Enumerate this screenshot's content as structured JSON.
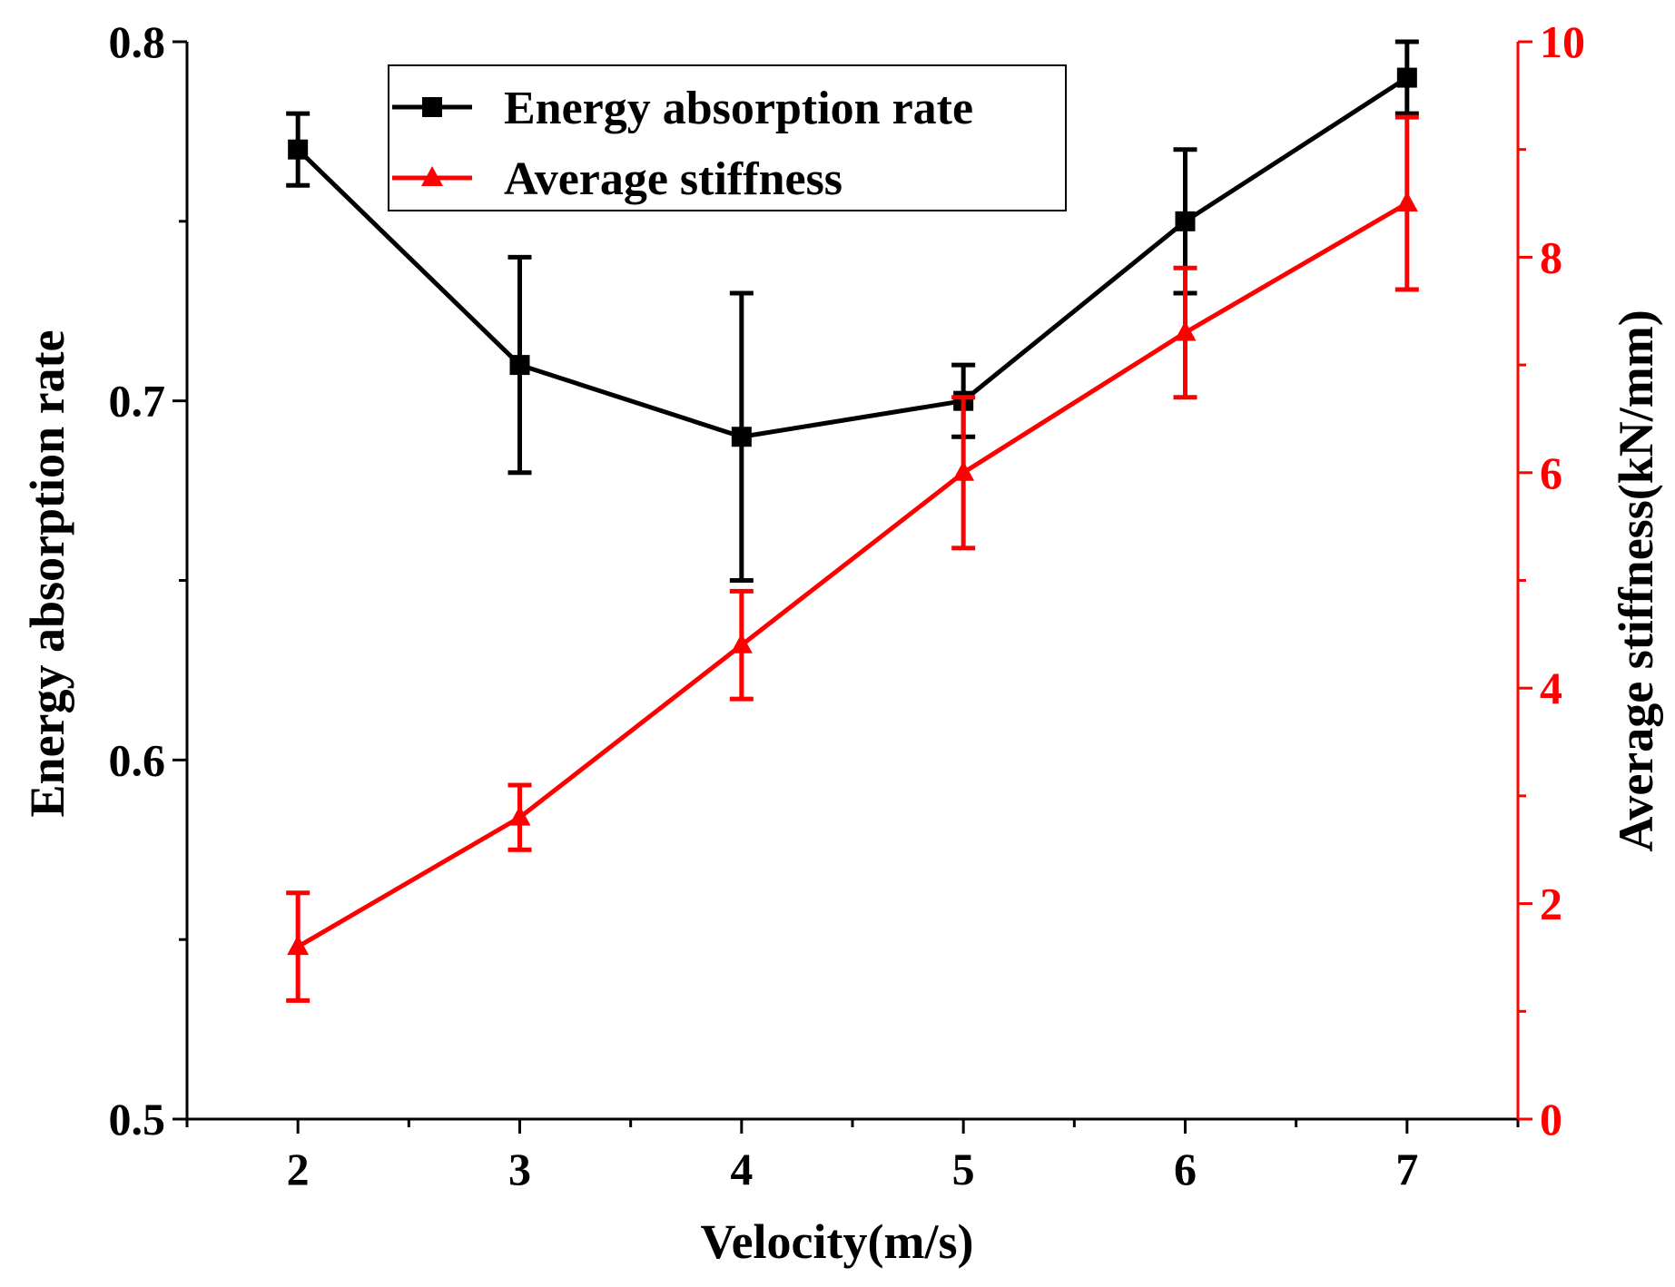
{
  "chart_data": {
    "type": "line",
    "title": "",
    "xlabel": "Velocity(m/s)",
    "ylabel_left": "Energy absorption rate",
    "ylabel_right": "Average stiffness(kN/mm)",
    "xlim": [
      1.5,
      7.5
    ],
    "ylim_left": [
      0.5,
      0.8
    ],
    "ylim_right": [
      0,
      10
    ],
    "x_ticks": [
      2,
      3,
      4,
      5,
      6,
      7
    ],
    "x_tick_labels": [
      "2",
      "3",
      "4",
      "5",
      "6",
      "7"
    ],
    "y_left_ticks": [
      0.5,
      0.6,
      0.7,
      0.8
    ],
    "y_left_tick_labels": [
      "0.5",
      "0.6",
      "0.7",
      "0.8"
    ],
    "y_right_ticks": [
      0,
      2,
      4,
      6,
      8,
      10
    ],
    "y_right_tick_labels": [
      "0",
      "2",
      "4",
      "6",
      "8",
      "10"
    ],
    "grid": false,
    "legend_position": "top-center",
    "series": [
      {
        "name": "Energy absorption rate",
        "axis": "left",
        "color": "#000000",
        "marker": "square",
        "x": [
          2,
          3,
          4,
          5,
          6,
          7
        ],
        "values": [
          0.77,
          0.71,
          0.69,
          0.7,
          0.75,
          0.79
        ],
        "err_low": [
          0.76,
          0.68,
          0.65,
          0.69,
          0.73,
          0.78
        ],
        "err_high": [
          0.78,
          0.74,
          0.73,
          0.71,
          0.77,
          0.8
        ]
      },
      {
        "name": "Average stiffness",
        "axis": "right",
        "color": "#ff0000",
        "marker": "triangle",
        "x": [
          2,
          3,
          4,
          5,
          6,
          7
        ],
        "values": [
          1.6,
          2.8,
          4.4,
          6.0,
          7.3,
          8.5
        ],
        "err_low": [
          1.1,
          2.5,
          3.9,
          5.3,
          6.7,
          7.7
        ],
        "err_high": [
          2.1,
          3.1,
          4.9,
          6.7,
          7.9,
          9.3
        ]
      }
    ]
  }
}
